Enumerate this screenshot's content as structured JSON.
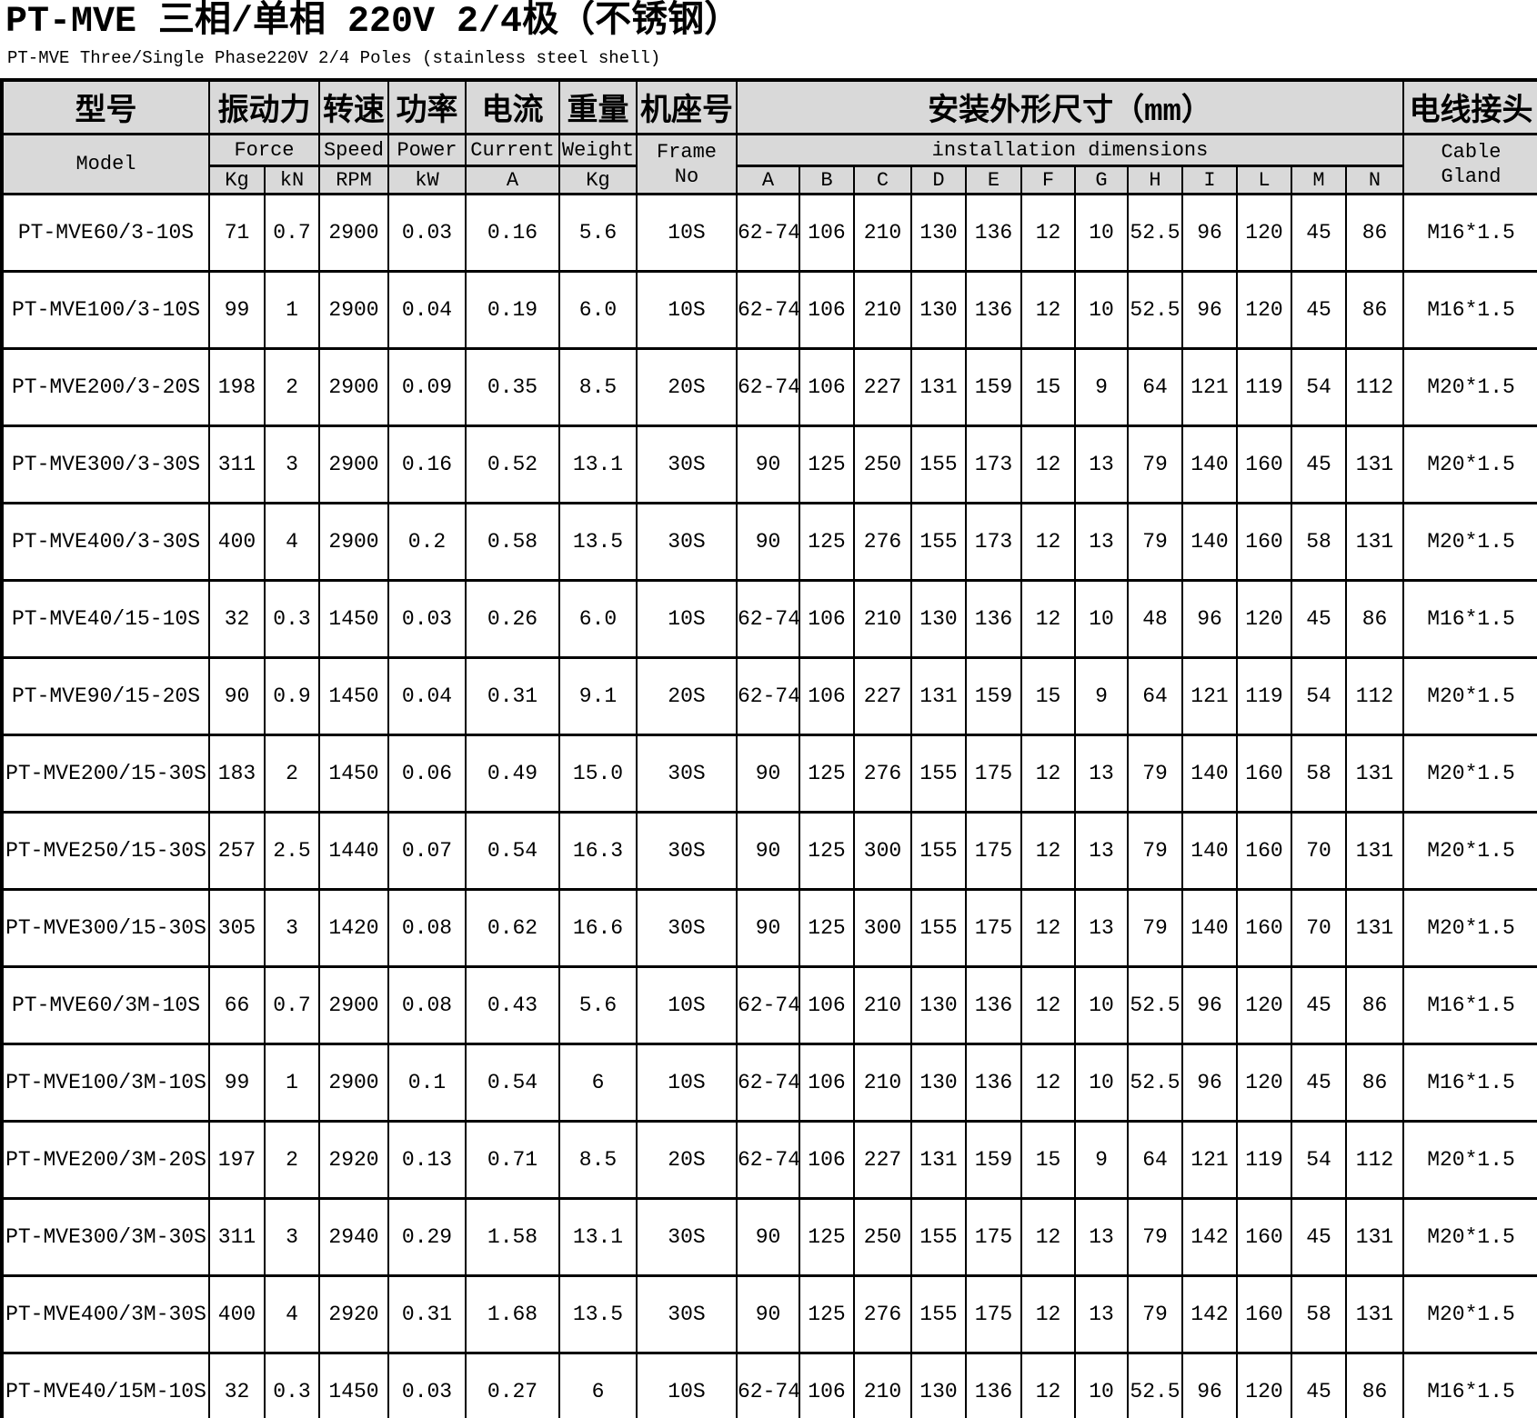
{
  "page": {
    "title": "PT-MVE 三相/单相 220V 2/4极（不锈钢）",
    "subtitle": "PT-MVE Three/Single Phase220V 2/4 Poles (stainless steel shell)"
  },
  "table": {
    "header": {
      "model_cn": "型号",
      "model_en": "Model",
      "force_cn": "振动力",
      "force_en": "Force",
      "force_kg_unit": "Kg",
      "force_kn_unit": "kN",
      "speed_cn": "转速",
      "speed_en": "Speed",
      "speed_unit": "RPM",
      "power_cn": "功率",
      "power_en": "Power",
      "power_unit": "kW",
      "current_cn": "电流",
      "current_en": "Current",
      "current_unit": "A",
      "weight_cn": "重量",
      "weight_en": "Weight",
      "weight_unit": "Kg",
      "frame_cn": "机座号",
      "frame_en_line1": "Frame",
      "frame_en_line2": "No",
      "dims_cn": "安装外形尺寸（mm）",
      "dims_en": "installation dimensions",
      "dim_letters": [
        "A",
        "B",
        "C",
        "D",
        "E",
        "F",
        "G",
        "H",
        "I",
        "L",
        "M",
        "N"
      ],
      "cable_cn": "电线接头",
      "cable_en_line1": "Cable",
      "cable_en_line2": "Gland"
    },
    "rows": [
      {
        "model": "PT-MVE60/3-10S",
        "force_kg": "71",
        "force_kn": "0.7",
        "speed_rpm": "2900",
        "power_kw": "0.03",
        "current_a": "0.16",
        "weight_kg": "5.6",
        "frame_no": "10S",
        "dims": [
          "62-74",
          "106",
          "210",
          "130",
          "136",
          "12",
          "10",
          "52.5",
          "96",
          "120",
          "45",
          "86"
        ],
        "cable_gland": "M16*1.5"
      },
      {
        "model": "PT-MVE100/3-10S",
        "force_kg": "99",
        "force_kn": "1",
        "speed_rpm": "2900",
        "power_kw": "0.04",
        "current_a": "0.19",
        "weight_kg": "6.0",
        "frame_no": "10S",
        "dims": [
          "62-74",
          "106",
          "210",
          "130",
          "136",
          "12",
          "10",
          "52.5",
          "96",
          "120",
          "45",
          "86"
        ],
        "cable_gland": "M16*1.5"
      },
      {
        "model": "PT-MVE200/3-20S",
        "force_kg": "198",
        "force_kn": "2",
        "speed_rpm": "2900",
        "power_kw": "0.09",
        "current_a": "0.35",
        "weight_kg": "8.5",
        "frame_no": "20S",
        "dims": [
          "62-74",
          "106",
          "227",
          "131",
          "159",
          "15",
          "9",
          "64",
          "121",
          "119",
          "54",
          "112"
        ],
        "cable_gland": "M20*1.5"
      },
      {
        "model": "PT-MVE300/3-30S",
        "force_kg": "311",
        "force_kn": "3",
        "speed_rpm": "2900",
        "power_kw": "0.16",
        "current_a": "0.52",
        "weight_kg": "13.1",
        "frame_no": "30S",
        "dims": [
          "90",
          "125",
          "250",
          "155",
          "173",
          "12",
          "13",
          "79",
          "140",
          "160",
          "45",
          "131"
        ],
        "cable_gland": "M20*1.5"
      },
      {
        "model": "PT-MVE400/3-30S",
        "force_kg": "400",
        "force_kn": "4",
        "speed_rpm": "2900",
        "power_kw": "0.2",
        "current_a": "0.58",
        "weight_kg": "13.5",
        "frame_no": "30S",
        "dims": [
          "90",
          "125",
          "276",
          "155",
          "173",
          "12",
          "13",
          "79",
          "140",
          "160",
          "58",
          "131"
        ],
        "cable_gland": "M20*1.5"
      },
      {
        "model": "PT-MVE40/15-10S",
        "force_kg": "32",
        "force_kn": "0.3",
        "speed_rpm": "1450",
        "power_kw": "0.03",
        "current_a": "0.26",
        "weight_kg": "6.0",
        "frame_no": "10S",
        "dims": [
          "62-74",
          "106",
          "210",
          "130",
          "136",
          "12",
          "10",
          "48",
          "96",
          "120",
          "45",
          "86"
        ],
        "cable_gland": "M16*1.5"
      },
      {
        "model": "PT-MVE90/15-20S",
        "force_kg": "90",
        "force_kn": "0.9",
        "speed_rpm": "1450",
        "power_kw": "0.04",
        "current_a": "0.31",
        "weight_kg": "9.1",
        "frame_no": "20S",
        "dims": [
          "62-74",
          "106",
          "227",
          "131",
          "159",
          "15",
          "9",
          "64",
          "121",
          "119",
          "54",
          "112"
        ],
        "cable_gland": "M20*1.5"
      },
      {
        "model": "PT-MVE200/15-30S",
        "force_kg": "183",
        "force_kn": "2",
        "speed_rpm": "1450",
        "power_kw": "0.06",
        "current_a": "0.49",
        "weight_kg": "15.0",
        "frame_no": "30S",
        "dims": [
          "90",
          "125",
          "276",
          "155",
          "175",
          "12",
          "13",
          "79",
          "140",
          "160",
          "58",
          "131"
        ],
        "cable_gland": "M20*1.5"
      },
      {
        "model": "PT-MVE250/15-30S",
        "force_kg": "257",
        "force_kn": "2.5",
        "speed_rpm": "1440",
        "power_kw": "0.07",
        "current_a": "0.54",
        "weight_kg": "16.3",
        "frame_no": "30S",
        "dims": [
          "90",
          "125",
          "300",
          "155",
          "175",
          "12",
          "13",
          "79",
          "140",
          "160",
          "70",
          "131"
        ],
        "cable_gland": "M20*1.5"
      },
      {
        "model": "PT-MVE300/15-30S",
        "force_kg": "305",
        "force_kn": "3",
        "speed_rpm": "1420",
        "power_kw": "0.08",
        "current_a": "0.62",
        "weight_kg": "16.6",
        "frame_no": "30S",
        "dims": [
          "90",
          "125",
          "300",
          "155",
          "175",
          "12",
          "13",
          "79",
          "140",
          "160",
          "70",
          "131"
        ],
        "cable_gland": "M20*1.5"
      },
      {
        "model": "PT-MVE60/3M-10S",
        "force_kg": "66",
        "force_kn": "0.7",
        "speed_rpm": "2900",
        "power_kw": "0.08",
        "current_a": "0.43",
        "weight_kg": "5.6",
        "frame_no": "10S",
        "dims": [
          "62-74",
          "106",
          "210",
          "130",
          "136",
          "12",
          "10",
          "52.5",
          "96",
          "120",
          "45",
          "86"
        ],
        "cable_gland": "M16*1.5"
      },
      {
        "model": "PT-MVE100/3M-10S",
        "force_kg": "99",
        "force_kn": "1",
        "speed_rpm": "2900",
        "power_kw": "0.1",
        "current_a": "0.54",
        "weight_kg": "6",
        "frame_no": "10S",
        "dims": [
          "62-74",
          "106",
          "210",
          "130",
          "136",
          "12",
          "10",
          "52.5",
          "96",
          "120",
          "45",
          "86"
        ],
        "cable_gland": "M16*1.5"
      },
      {
        "model": "PT-MVE200/3M-20S",
        "force_kg": "197",
        "force_kn": "2",
        "speed_rpm": "2920",
        "power_kw": "0.13",
        "current_a": "0.71",
        "weight_kg": "8.5",
        "frame_no": "20S",
        "dims": [
          "62-74",
          "106",
          "227",
          "131",
          "159",
          "15",
          "9",
          "64",
          "121",
          "119",
          "54",
          "112"
        ],
        "cable_gland": "M20*1.5"
      },
      {
        "model": "PT-MVE300/3M-30S",
        "force_kg": "311",
        "force_kn": "3",
        "speed_rpm": "2940",
        "power_kw": "0.29",
        "current_a": "1.58",
        "weight_kg": "13.1",
        "frame_no": "30S",
        "dims": [
          "90",
          "125",
          "250",
          "155",
          "175",
          "12",
          "13",
          "79",
          "142",
          "160",
          "45",
          "131"
        ],
        "cable_gland": "M20*1.5"
      },
      {
        "model": "PT-MVE400/3M-30S",
        "force_kg": "400",
        "force_kn": "4",
        "speed_rpm": "2920",
        "power_kw": "0.31",
        "current_a": "1.68",
        "weight_kg": "13.5",
        "frame_no": "30S",
        "dims": [
          "90",
          "125",
          "276",
          "155",
          "175",
          "12",
          "13",
          "79",
          "142",
          "160",
          "58",
          "131"
        ],
        "cable_gland": "M20*1.5"
      },
      {
        "model": "PT-MVE40/15M-10S",
        "force_kg": "32",
        "force_kn": "0.3",
        "speed_rpm": "1450",
        "power_kw": "0.03",
        "current_a": "0.27",
        "weight_kg": "6",
        "frame_no": "10S",
        "dims": [
          "62-74",
          "106",
          "210",
          "130",
          "136",
          "12",
          "10",
          "52.5",
          "96",
          "120",
          "45",
          "86"
        ],
        "cable_gland": "M16*1.5"
      }
    ]
  }
}
